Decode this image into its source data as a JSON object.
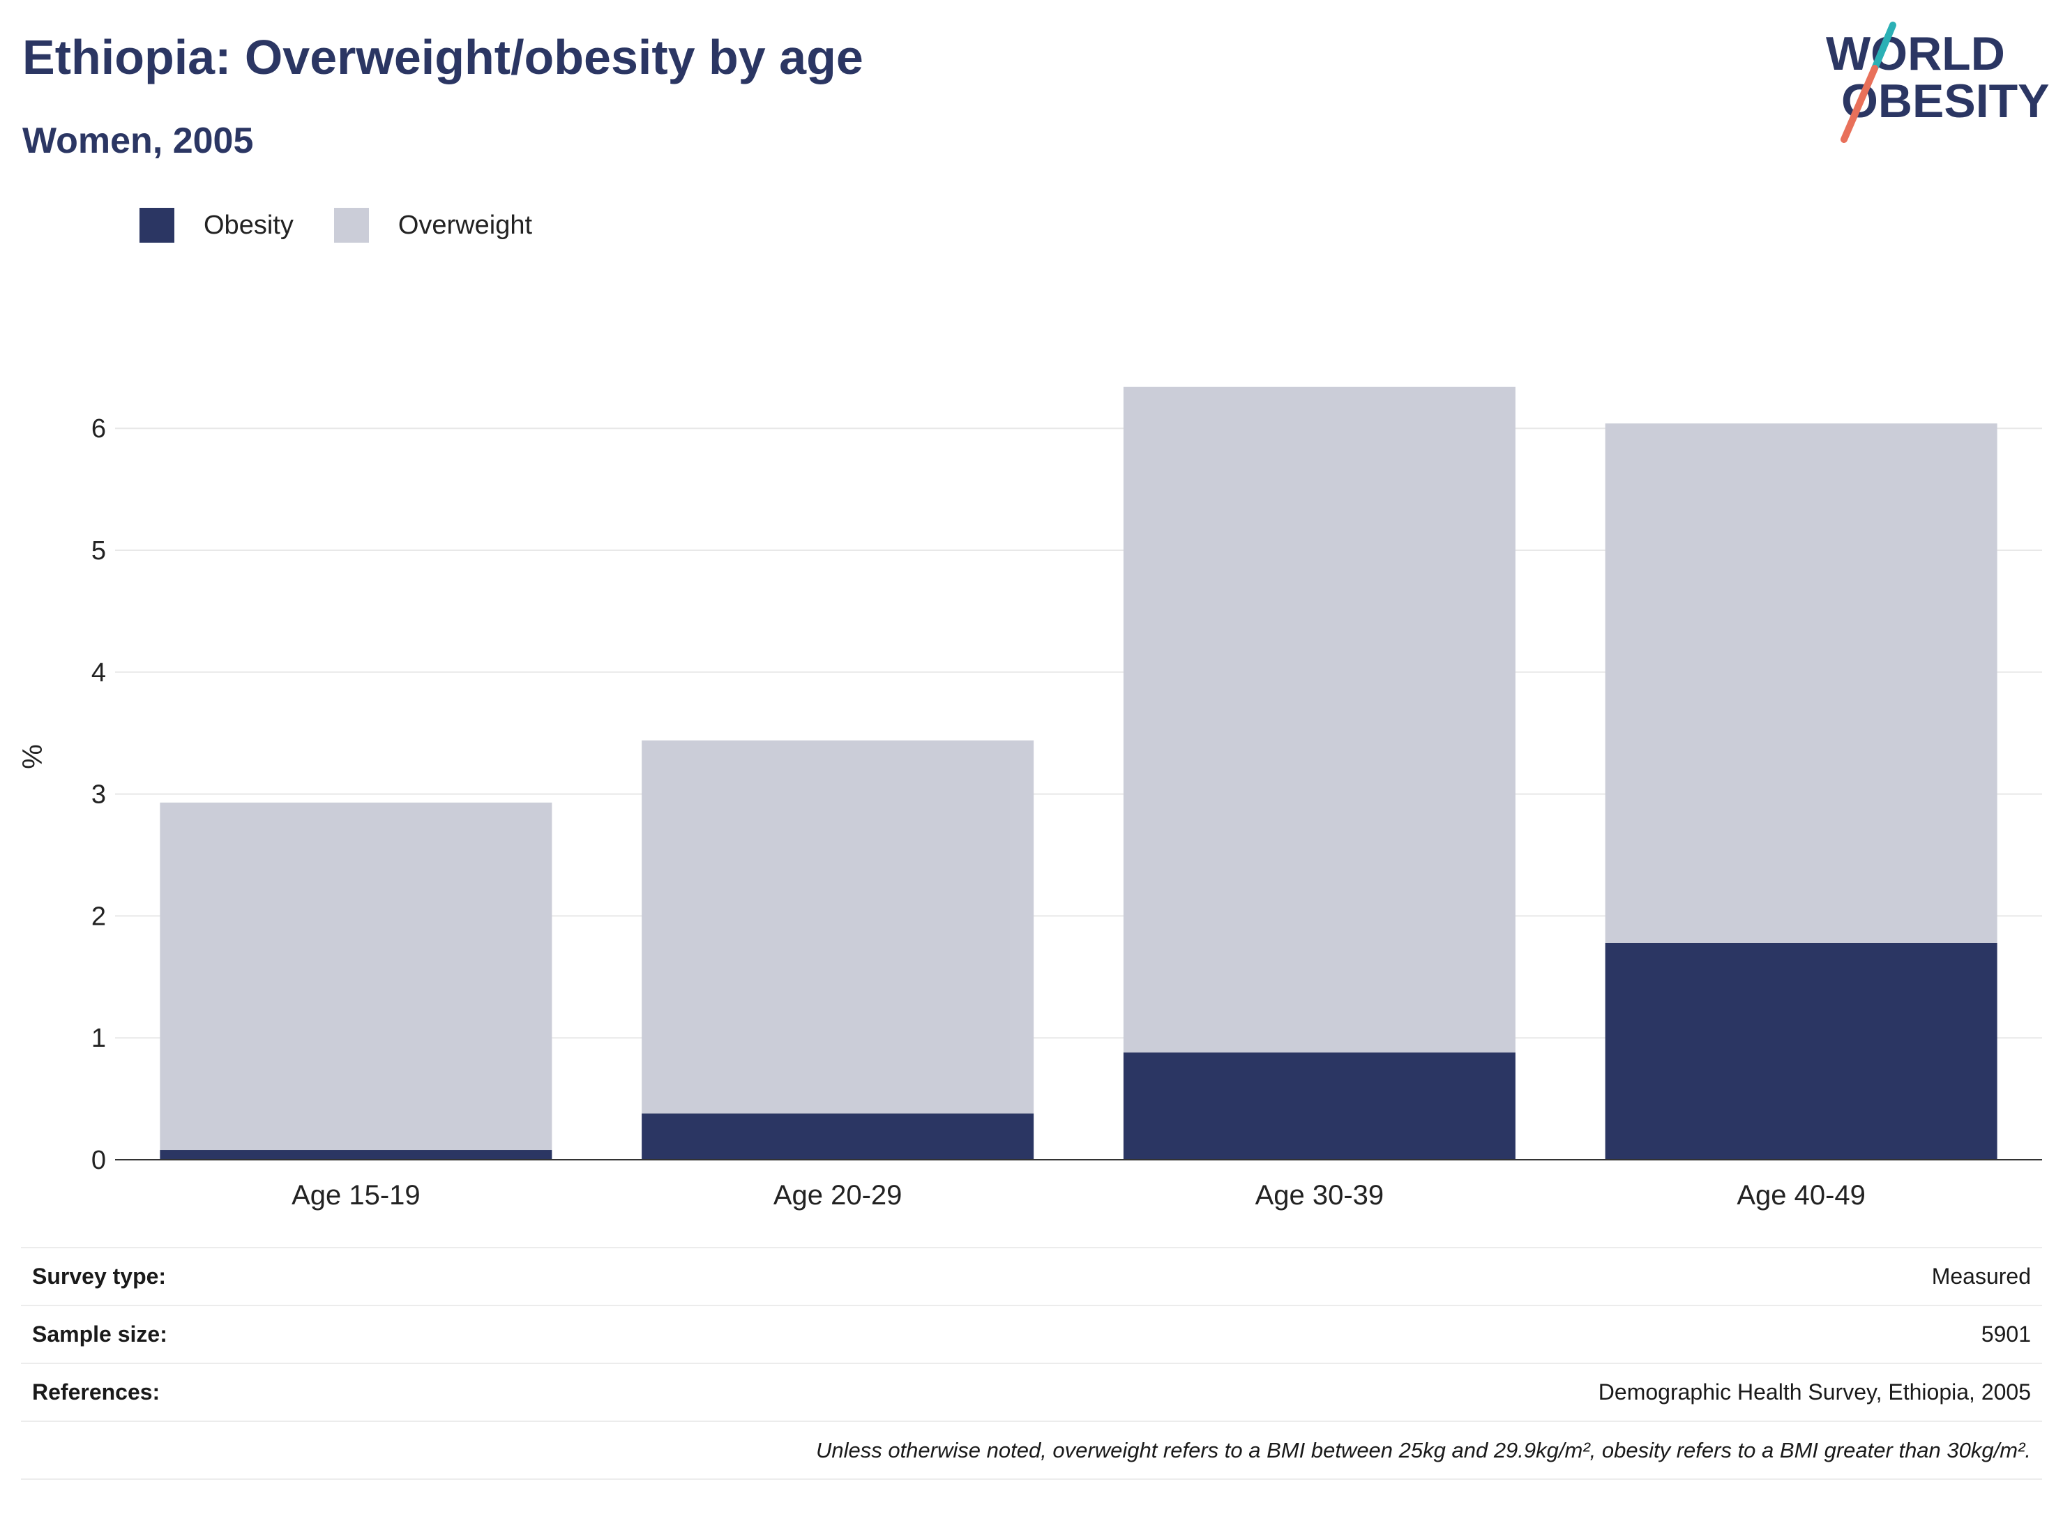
{
  "header": {
    "title": "Ethiopia: Overweight/obesity by age",
    "subtitle": "Women, 2005"
  },
  "logo": {
    "line1": "WORLD",
    "line2": "OBESITY",
    "colors": {
      "text": "#2b3663",
      "slash_top": "#2bb0b5",
      "slash_bottom": "#e8705a"
    }
  },
  "legend": [
    {
      "label": "Obesity",
      "color": "#2b3663"
    },
    {
      "label": "Overweight",
      "color": "#cbcdd8"
    }
  ],
  "chart_data": {
    "type": "bar",
    "stacked": true,
    "categories": [
      "Age 15-19",
      "Age 20-29",
      "Age 30-39",
      "Age 40-49"
    ],
    "series": [
      {
        "name": "Obesity",
        "color": "#2b3663",
        "values": [
          0.08,
          0.38,
          0.88,
          1.78
        ]
      },
      {
        "name": "Overweight",
        "color": "#cbcdd8",
        "values": [
          2.85,
          3.06,
          5.46,
          4.26
        ]
      }
    ],
    "ylabel": "%",
    "ylim": [
      0,
      6.6
    ],
    "yticks": [
      0,
      1,
      2,
      3,
      4,
      5,
      6
    ],
    "grid": true,
    "legend_position": "top-left"
  },
  "info": {
    "rows": [
      {
        "key": "Survey type:",
        "value": "Measured"
      },
      {
        "key": "Sample size:",
        "value": "5901"
      },
      {
        "key": "References:",
        "value": "Demographic Health Survey, Ethiopia, 2005"
      }
    ],
    "note": "Unless otherwise noted, overweight refers to a BMI between 25kg and 29.9kg/m², obesity refers to a BMI greater than 30kg/m²."
  }
}
